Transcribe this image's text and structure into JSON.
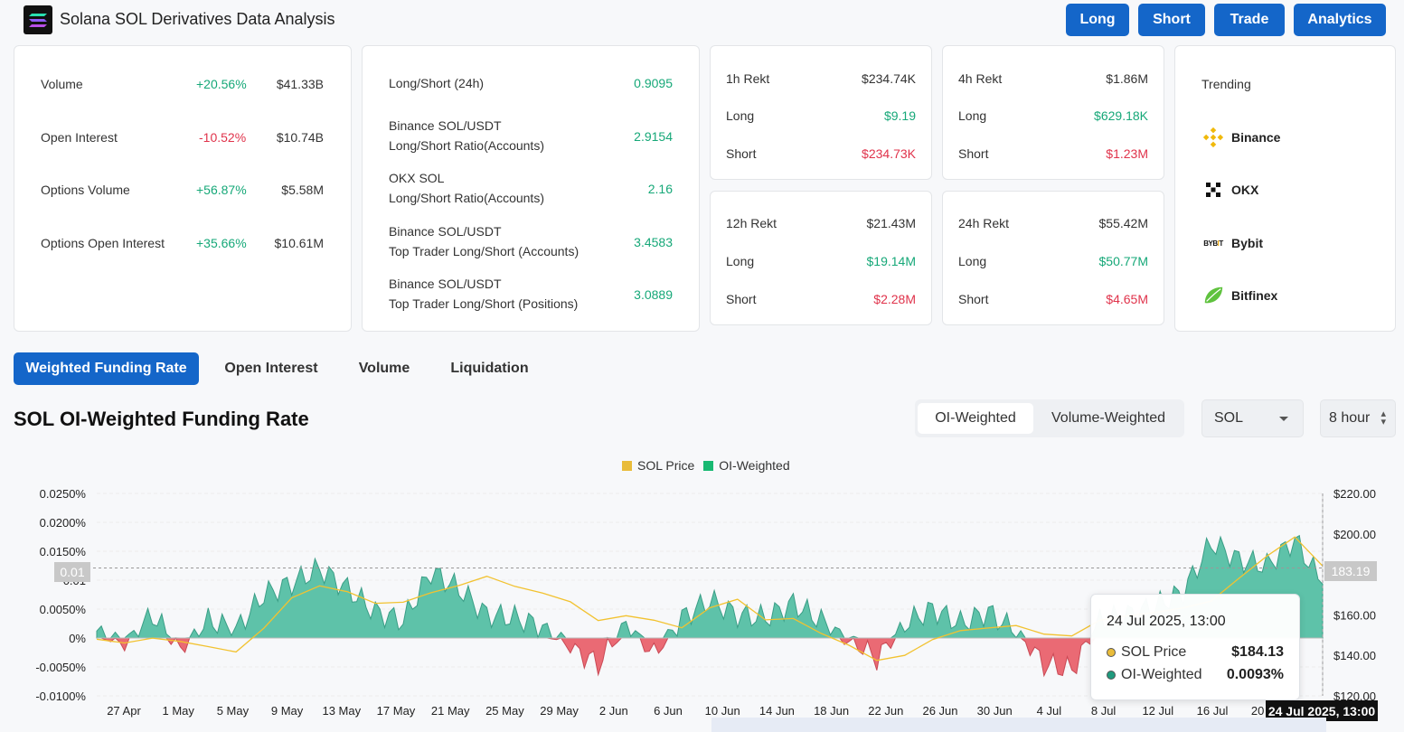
{
  "header": {
    "title": "Solana SOL Derivatives Data Analysis",
    "buttons": [
      "Long",
      "Short",
      "Trade",
      "Analytics"
    ]
  },
  "overview": [
    {
      "label": "Volume",
      "change": "+20.56%",
      "value": "$41.33B",
      "dir": "up"
    },
    {
      "label": "Open Interest",
      "change": "-10.52%",
      "value": "$10.74B",
      "dir": "down"
    },
    {
      "label": "Options Volume",
      "change": "+56.87%",
      "value": "$5.58M",
      "dir": "up"
    },
    {
      "label": "Options Open Interest",
      "change": "+35.66%",
      "value": "$10.61M",
      "dir": "up"
    }
  ],
  "ratios": [
    {
      "line1": "Long/Short (24h)",
      "line2": "",
      "value": "0.9095"
    },
    {
      "line1": "Binance SOL/USDT",
      "line2": "Long/Short Ratio(Accounts)",
      "value": "2.9154"
    },
    {
      "line1": "OKX SOL",
      "line2": "Long/Short Ratio(Accounts)",
      "value": "2.16"
    },
    {
      "line1": "Binance SOL/USDT",
      "line2": "Top Trader Long/Short (Accounts)",
      "value": "3.4583"
    },
    {
      "line1": "Binance SOL/USDT",
      "line2": "Top Trader Long/Short (Positions)",
      "value": "3.0889"
    }
  ],
  "rekt": [
    {
      "label": "1h Rekt",
      "total": "$234.74K",
      "long_label": "Long",
      "long": "$9.19",
      "short_label": "Short",
      "short": "$234.73K"
    },
    {
      "label": "4h Rekt",
      "total": "$1.86M",
      "long_label": "Long",
      "long": "$629.18K",
      "short_label": "Short",
      "short": "$1.23M"
    },
    {
      "label": "12h Rekt",
      "total": "$21.43M",
      "long_label": "Long",
      "long": "$19.14M",
      "short_label": "Short",
      "short": "$2.28M"
    },
    {
      "label": "24h Rekt",
      "total": "$55.42M",
      "long_label": "Long",
      "long": "$50.77M",
      "short_label": "Short",
      "short": "$4.65M"
    }
  ],
  "trending": {
    "title": "Trending",
    "items": [
      {
        "name": "Binance",
        "icon": "binance-icon"
      },
      {
        "name": "OKX",
        "icon": "okx-icon"
      },
      {
        "name": "Bybit",
        "icon": "bybit-icon"
      },
      {
        "name": "Bitfinex",
        "icon": "bitfinex-icon"
      }
    ]
  },
  "tabs": [
    "Weighted Funding Rate",
    "Open Interest",
    "Volume",
    "Liquidation"
  ],
  "chart_section": {
    "title": "SOL OI-Weighted Funding Rate",
    "segments": [
      "OI-Weighted",
      "Volume-Weighted"
    ],
    "symbol_select": "SOL",
    "interval_select": "8 hour"
  },
  "tooltip": {
    "title": "24 Jul 2025, 13:00",
    "rows": [
      {
        "label": "SOL Price",
        "value": "$184.13"
      },
      {
        "label": "OI-Weighted",
        "value": "0.0093%"
      }
    ]
  },
  "crosshair": {
    "x_label": "24 Jul 2025, 13:00",
    "y_right_label": "183.19",
    "y_left_label": "0.01"
  },
  "colors": {
    "accent": "#1466c9",
    "up": "#16a878",
    "down": "#e0334b",
    "price_line": "#f2c230",
    "area_pos": "#5ec2a9",
    "area_neg": "#ea6a74"
  },
  "chart_data": {
    "type": "area",
    "legend": [
      "SOL Price",
      "OI-Weighted"
    ],
    "x_ticks": [
      "27 Apr",
      "1 May",
      "5 May",
      "9 May",
      "13 May",
      "17 May",
      "21 May",
      "25 May",
      "29 May",
      "2 Jun",
      "6 Jun",
      "10 Jun",
      "14 Jun",
      "18 Jun",
      "22 Jun",
      "26 Jun",
      "30 Jun",
      "4 Jul",
      "8 Jul",
      "12 Jul",
      "16 Jul",
      "20 Jul",
      "24 Jul"
    ],
    "y_left_ticks": [
      "0.0250%",
      "0.0200%",
      "0.0150%",
      "0.01",
      "0.0050%",
      "0%",
      "-0.0050%",
      "-0.0100%"
    ],
    "y_left_range": [
      -0.01,
      0.025
    ],
    "y_right_ticks": [
      "$220.00",
      "$200.00",
      "$160.00",
      "$140.00",
      "$120.00"
    ],
    "y_right_range": [
      120,
      220
    ],
    "series": [
      {
        "name": "OI-Weighted",
        "unit": "%",
        "dates": [
          "27 Apr",
          "29 Apr",
          "1 May",
          "3 May",
          "5 May",
          "7 May",
          "9 May",
          "11 May",
          "13 May",
          "15 May",
          "17 May",
          "19 May",
          "21 May",
          "23 May",
          "25 May",
          "27 May",
          "29 May",
          "31 May",
          "2 Jun",
          "4 Jun",
          "6 Jun",
          "8 Jun",
          "10 Jun",
          "12 Jun",
          "14 Jun",
          "16 Jun",
          "18 Jun",
          "20 Jun",
          "22 Jun",
          "24 Jun",
          "26 Jun",
          "28 Jun",
          "30 Jun",
          "2 Jul",
          "4 Jul",
          "6 Jul",
          "8 Jul",
          "10 Jul",
          "12 Jul",
          "14 Jul",
          "16 Jul",
          "18 Jul",
          "20 Jul",
          "22 Jul",
          "24 Jul"
        ],
        "values": [
          0.0012,
          -0.001,
          0.004,
          -0.002,
          0.003,
          0.0015,
          0.0075,
          0.0095,
          0.012,
          0.0085,
          0.0045,
          0.003,
          0.0115,
          0.0085,
          0.004,
          0.0035,
          0.002,
          -0.0015,
          -0.0045,
          0.0025,
          -0.003,
          0.0035,
          0.0065,
          0.004,
          0.0035,
          0.006,
          0.003,
          -0.0005,
          -0.0035,
          0.0025,
          0.005,
          0.0025,
          0.0045,
          0.001,
          -0.0045,
          -0.0055,
          0.003,
          0.004,
          0.0055,
          0.008,
          0.0165,
          0.0135,
          0.0125,
          0.017,
          0.0093
        ]
      },
      {
        "name": "SOL Price",
        "unit": "$",
        "dates": [
          "27 Apr",
          "29 Apr",
          "1 May",
          "3 May",
          "5 May",
          "7 May",
          "9 May",
          "11 May",
          "13 May",
          "15 May",
          "17 May",
          "19 May",
          "21 May",
          "23 May",
          "25 May",
          "27 May",
          "29 May",
          "31 May",
          "2 Jun",
          "4 Jun",
          "6 Jun",
          "8 Jun",
          "10 Jun",
          "12 Jun",
          "14 Jun",
          "16 Jun",
          "18 Jun",
          "20 Jun",
          "22 Jun",
          "24 Jun",
          "26 Jun",
          "28 Jun",
          "30 Jun",
          "2 Jul",
          "4 Jul",
          "6 Jul",
          "8 Jul",
          "10 Jul",
          "12 Jul",
          "14 Jul",
          "16 Jul",
          "18 Jul",
          "20 Jul",
          "22 Jul",
          "24 Jul"
        ],
        "values": [
          148,
          145,
          150,
          146,
          144,
          143,
          152,
          169,
          175,
          170,
          167,
          166,
          170,
          176,
          178,
          174,
          172,
          165,
          158,
          160,
          156,
          155,
          163,
          167,
          159,
          157,
          151,
          146,
          136,
          141,
          148,
          151,
          155,
          154,
          150,
          151,
          156,
          160,
          162,
          162,
          168,
          178,
          188,
          200,
          184.13
        ]
      }
    ]
  }
}
